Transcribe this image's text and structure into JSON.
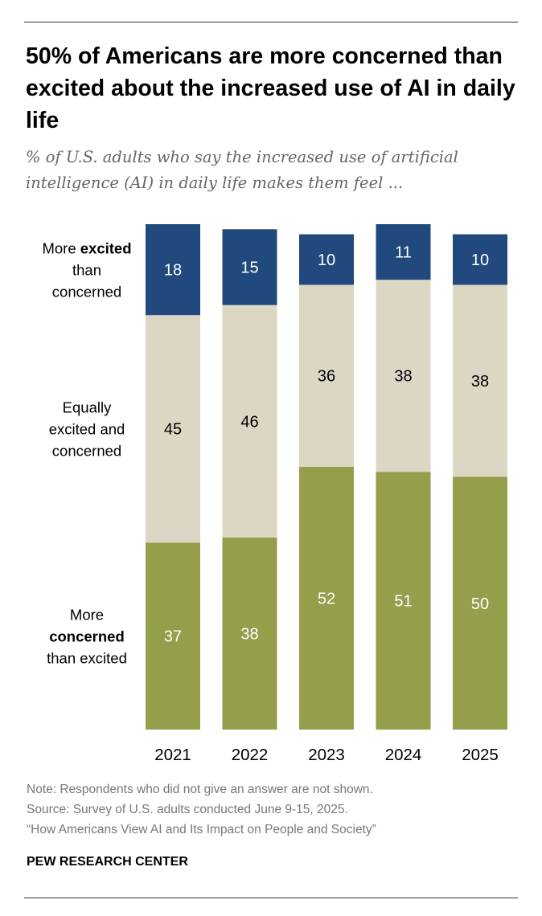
{
  "title": "50% of Americans are more concerned than excited about the increased use of AI in daily life",
  "subtitle": "% of U.S. adults who say the increased use of artificial intelligence (AI) in daily life makes them feel ...",
  "chart_data": {
    "type": "bar",
    "stacked": true,
    "categories": [
      "2021",
      "2022",
      "2023",
      "2024",
      "2025"
    ],
    "series": [
      {
        "name": "More concerned than excited",
        "label_lines": [
          [
            "More",
            ""
          ],
          [
            "concerned",
            "bold"
          ],
          [
            "than excited",
            ""
          ]
        ],
        "color": "#959e4a",
        "values": [
          37,
          38,
          52,
          51,
          50
        ]
      },
      {
        "name": "Equally excited and concerned",
        "label_lines": [
          [
            "Equally",
            ""
          ],
          [
            "excited and",
            ""
          ],
          [
            "concerned",
            ""
          ]
        ],
        "color": "#dcd6c4",
        "values": [
          45,
          46,
          36,
          38,
          38
        ]
      },
      {
        "name": "More excited than concerned",
        "label_lines": [
          [
            "More excited",
            ""
          ],
          [
            "than",
            ""
          ],
          [
            "concerned",
            ""
          ]
        ],
        "color": "#22497d",
        "values": [
          18,
          15,
          10,
          11,
          10
        ]
      }
    ],
    "ylim": [
      0,
      100
    ]
  },
  "notes": [
    "Note: Respondents who did not give an answer are not shown.",
    "Source: Survey of U.S. adults conducted June 9-15, 2025.",
    "“How Americans View AI and Its Impact on People and Society”"
  ],
  "brand": "PEW RESEARCH CENTER"
}
